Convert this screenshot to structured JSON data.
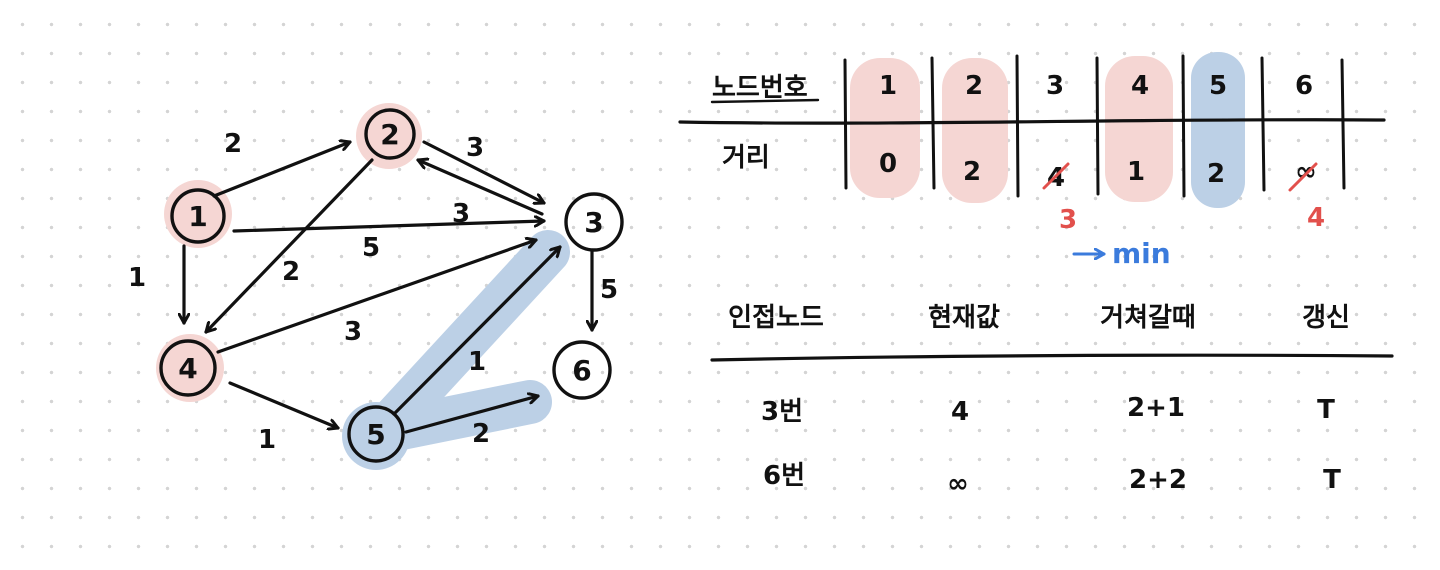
{
  "colors": {
    "ink": "#111111",
    "visited_highlight": "#f5d6d3",
    "current_highlight": "#bcd0e6",
    "correction_red": "#e2504c",
    "min_blue": "#3b7bdc"
  },
  "graph": {
    "nodes": [
      {
        "id": "1",
        "label": "1",
        "highlight": "visited"
      },
      {
        "id": "2",
        "label": "2",
        "highlight": "visited"
      },
      {
        "id": "3",
        "label": "3",
        "highlight": "none"
      },
      {
        "id": "4",
        "label": "4",
        "highlight": "visited"
      },
      {
        "id": "5",
        "label": "5",
        "highlight": "current"
      },
      {
        "id": "6",
        "label": "6",
        "highlight": "none"
      }
    ],
    "edges": [
      {
        "from": "1",
        "to": "2",
        "weight": "2"
      },
      {
        "from": "1",
        "to": "3",
        "weight": "5"
      },
      {
        "from": "1",
        "to": "4",
        "weight": "1"
      },
      {
        "from": "2",
        "to": "3",
        "weight": "3"
      },
      {
        "from": "3",
        "to": "2",
        "weight": "3"
      },
      {
        "from": "2",
        "to": "4",
        "weight": "2"
      },
      {
        "from": "4",
        "to": "3",
        "weight": "3"
      },
      {
        "from": "4",
        "to": "5",
        "weight": "1"
      },
      {
        "from": "5",
        "to": "3",
        "weight": "1"
      },
      {
        "from": "5",
        "to": "6",
        "weight": "2"
      },
      {
        "from": "3",
        "to": "6",
        "weight": "5"
      }
    ]
  },
  "distance_table": {
    "row_headers": [
      "노드번호",
      "거리"
    ],
    "nodes": [
      "1",
      "2",
      "3",
      "4",
      "5",
      "6"
    ],
    "distances": [
      "0",
      "2",
      "4",
      "1",
      "2",
      "∞"
    ],
    "highlights": [
      "visited",
      "visited",
      "none",
      "visited",
      "current",
      "none"
    ],
    "corrections": [
      {
        "node": "3",
        "old": "4",
        "new": "3"
      },
      {
        "node": "6",
        "old": "∞",
        "new": "4"
      }
    ],
    "min_label": "min"
  },
  "update_table": {
    "headers": [
      "인접노드",
      "현재값",
      "거쳐갈때",
      "갱신"
    ],
    "rows": [
      [
        "3번",
        "4",
        "2+1",
        "T"
      ],
      [
        "6번",
        "∞",
        "2+2",
        "T"
      ]
    ]
  }
}
